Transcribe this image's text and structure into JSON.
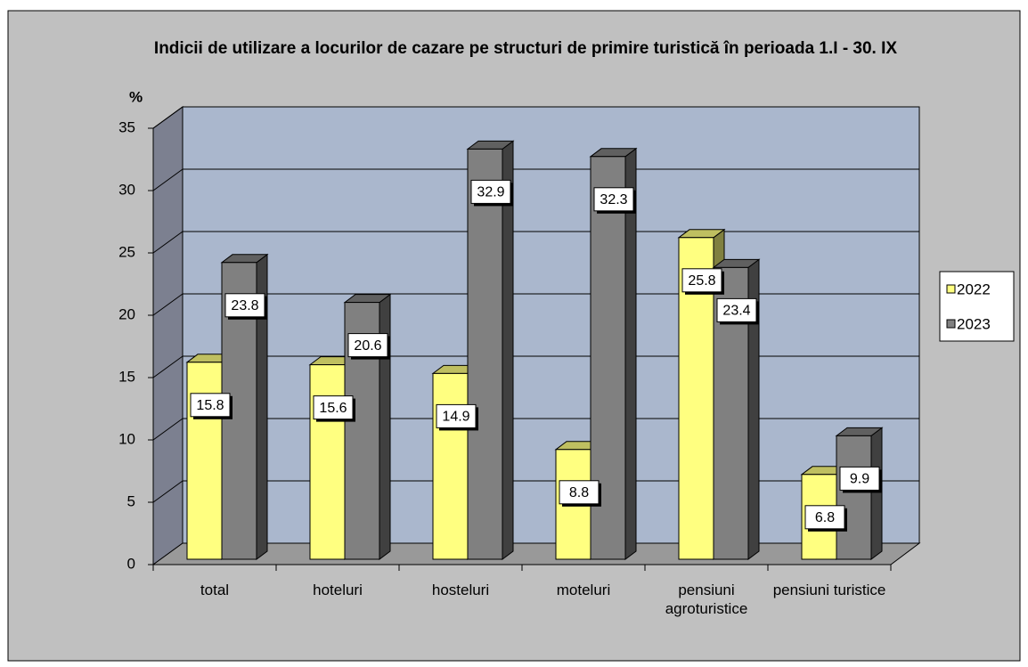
{
  "chart_data": {
    "type": "bar3d",
    "title": "Indicii de utilizare a locurilor de cazare pe structuri de primire turistică în perioada 1.I - 30. IX",
    "y_label": "%",
    "categories": [
      "total",
      "hoteluri",
      "hosteluri",
      "moteluri",
      "pensiuni agroturistice",
      "pensiuni turistice"
    ],
    "series": [
      {
        "name": "2022",
        "color": "#ffff80",
        "values": [
          15.8,
          15.6,
          14.9,
          8.8,
          25.8,
          6.8
        ]
      },
      {
        "name": "2023",
        "color": "#808080",
        "values": [
          23.8,
          20.6,
          32.9,
          32.3,
          23.4,
          9.9
        ]
      }
    ],
    "ylim": [
      0,
      35
    ],
    "yticks": [
      0,
      5,
      10,
      15,
      20,
      25,
      30,
      35
    ],
    "grid": true,
    "legend": "right"
  }
}
